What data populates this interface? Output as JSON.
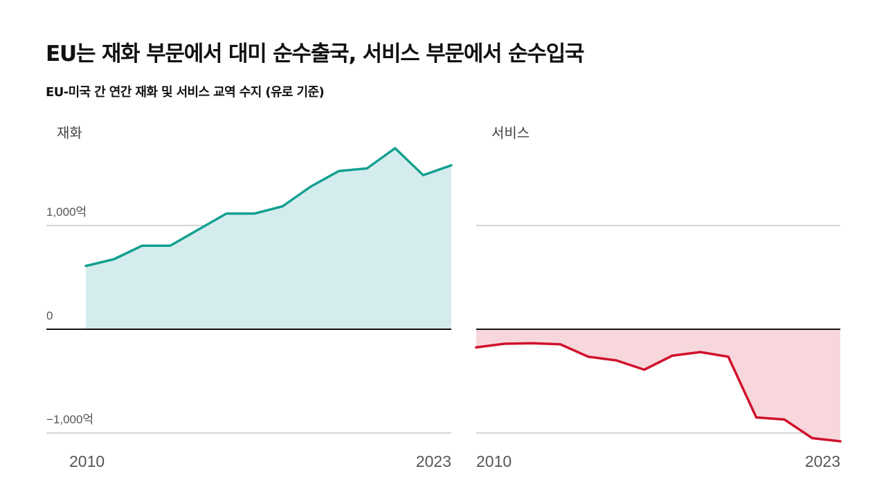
{
  "title": "EU는 재화 부문에서 대미 순수출국, 서비스 부문에서 순수입국",
  "subtitle": "EU-미국 간 연간 재화 및 서비스 교역 수지 (유로 기준)",
  "chart_data": [
    {
      "type": "area",
      "panel_label": "재화",
      "x": [
        2010,
        2011,
        2012,
        2013,
        2014,
        2015,
        2016,
        2017,
        2018,
        2019,
        2020,
        2021,
        2022,
        2023
      ],
      "series": [
        {
          "values": [
            610,
            675,
            805,
            805,
            960,
            1115,
            1115,
            1185,
            1375,
            1525,
            1550,
            1745,
            1485,
            1580
          ],
          "color": "#12a08f",
          "fill": "#d5ecee"
        }
      ],
      "ylim": [
        -1000,
        1850
      ],
      "y_ticks": [
        {
          "value": 1000,
          "label": "1,000억"
        },
        {
          "value": 0,
          "label": "0"
        },
        {
          "value": -1000,
          "label": "−1,000억"
        }
      ],
      "x_tick_labels": [
        "2010",
        "2023"
      ],
      "grid": true
    },
    {
      "type": "area",
      "panel_label": "서비스",
      "x": [
        2010,
        2011,
        2012,
        2013,
        2014,
        2015,
        2016,
        2017,
        2018,
        2019,
        2020,
        2021,
        2022,
        2023
      ],
      "series": [
        {
          "values": [
            -175,
            -140,
            -135,
            -145,
            -265,
            -300,
            -390,
            -255,
            -220,
            -265,
            -850,
            -870,
            -1050,
            -1080
          ],
          "color": "#d0112b",
          "fill": "#f7d6dc"
        }
      ],
      "ylim": [
        -1100,
        1850
      ],
      "y_ticks": [
        {
          "value": 1000,
          "label": ""
        },
        {
          "value": 0,
          "label": ""
        },
        {
          "value": -1000,
          "label": ""
        }
      ],
      "x_tick_labels": [
        "2010",
        "2023"
      ],
      "grid": true
    }
  ]
}
